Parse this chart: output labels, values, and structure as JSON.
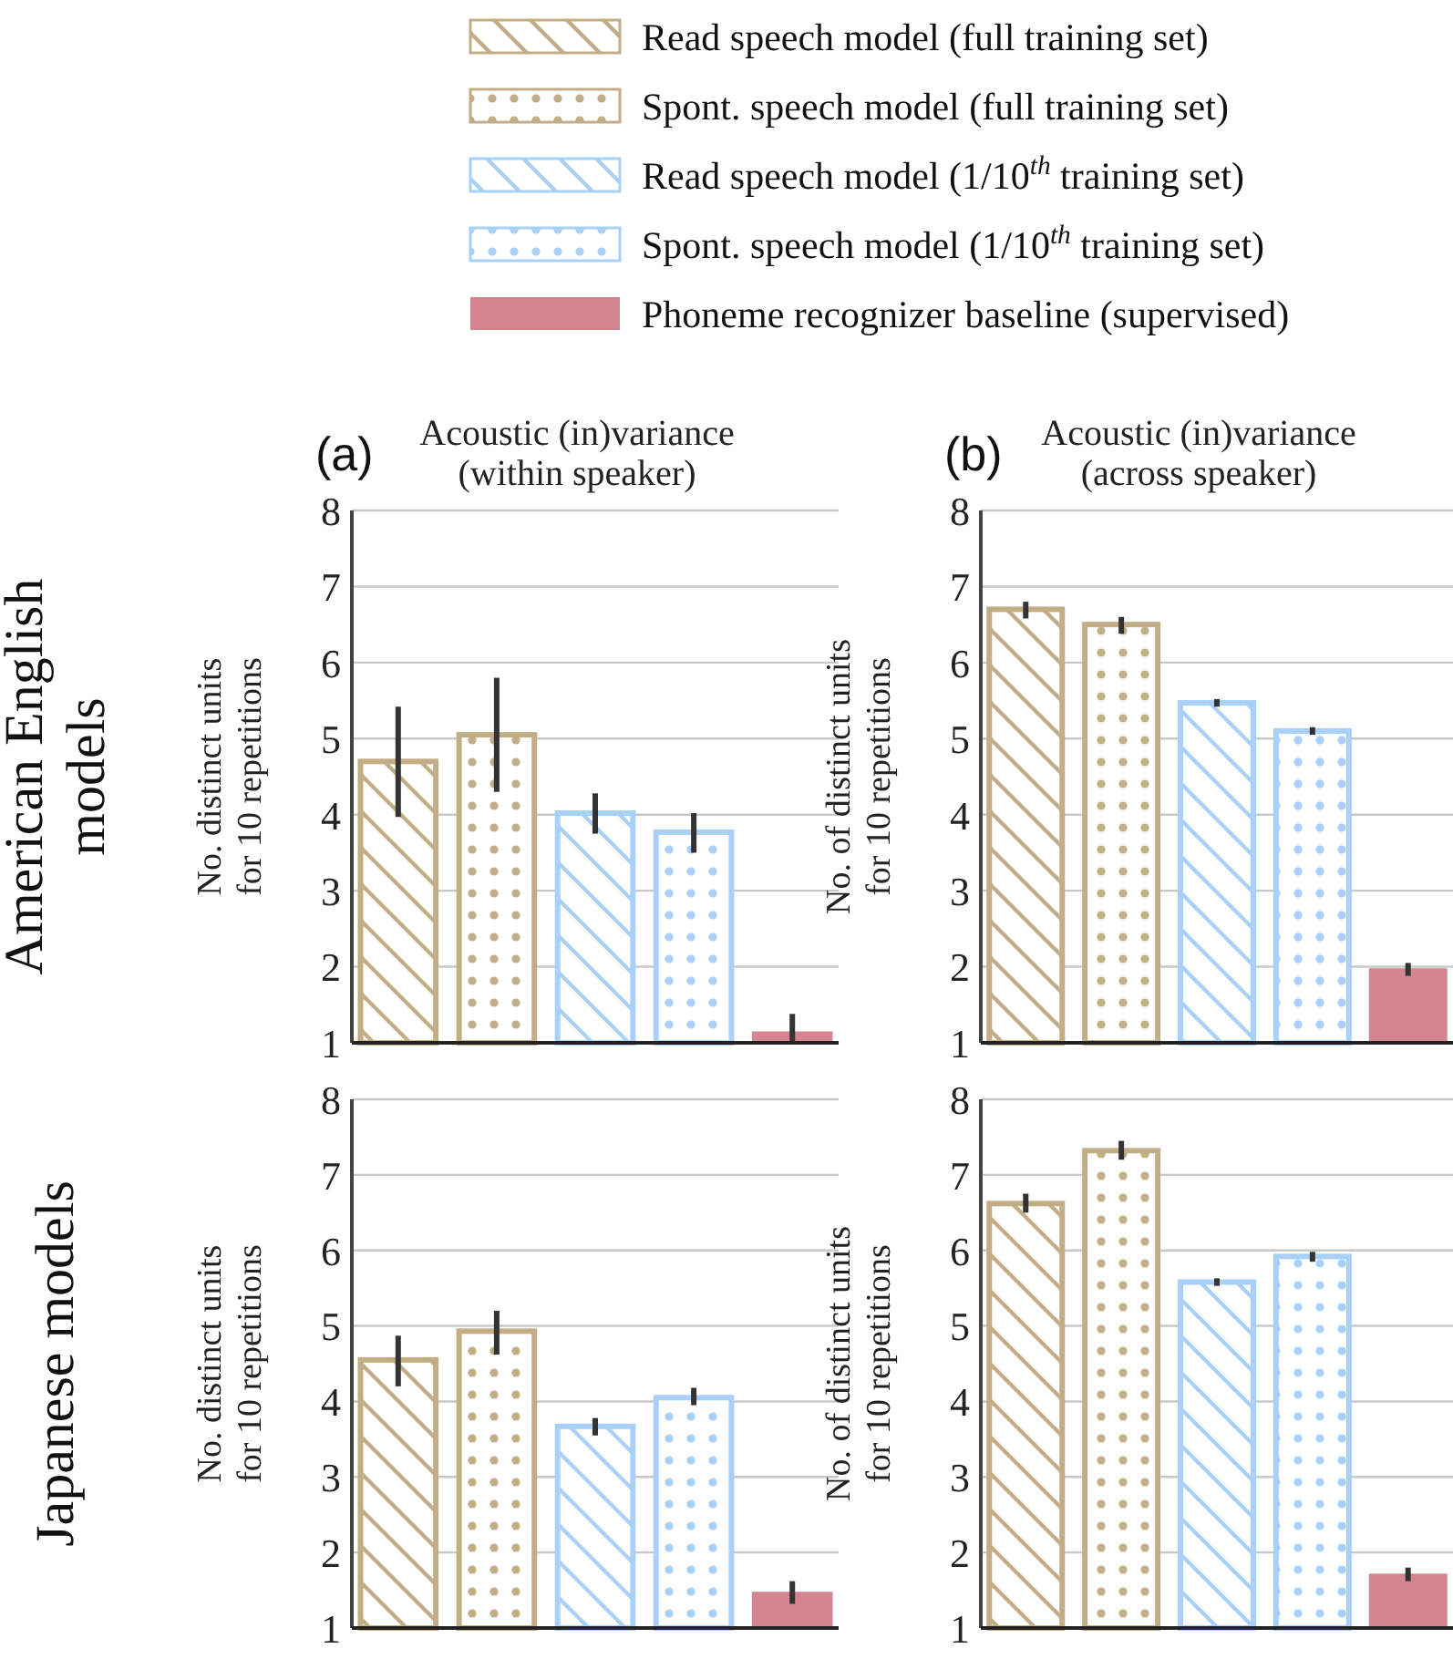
{
  "chart_data": [
    {
      "type": "bar",
      "title": "Acoustic (in)variance (within speaker)",
      "ylabel": "No. distinct units for 10 repetitions",
      "annotations": [
        "(a)",
        "American English models"
      ],
      "categories": [
        null,
        null,
        null,
        null,
        null
      ],
      "ylim": [
        1,
        8
      ],
      "yticks": [
        1,
        2,
        3,
        4,
        5,
        6,
        7,
        8
      ],
      "grid": "y",
      "legend": "top",
      "series": [
        {
          "name": "Read speech model (full training set)",
          "color": "#c3ad87",
          "values": [
            4.7,
            null,
            null,
            null,
            null
          ],
          "errors": [
            [
              3.97,
              5.42
            ],
            null,
            null,
            null,
            null
          ]
        },
        {
          "name": "Spont. speech model (full training set)",
          "color": "#c3ad87",
          "values": [
            null,
            5.05,
            null,
            null,
            null
          ],
          "errors": [
            null,
            [
              4.3,
              5.8
            ],
            null,
            null,
            null
          ]
        },
        {
          "name": "Read speech model (1/10$^{th}$ training set)",
          "color": "#a8d0f8",
          "values": [
            null,
            null,
            4.02,
            null,
            null
          ],
          "errors": [
            null,
            null,
            [
              3.75,
              4.28
            ],
            null,
            null
          ]
        },
        {
          "name": "Spont. speech model (1/10$^{th}$ training set)",
          "color": "#a8d0f8",
          "values": [
            null,
            null,
            null,
            3.77,
            null
          ],
          "errors": [
            null,
            null,
            null,
            [
              3.5,
              4.02
            ],
            null
          ]
        },
        {
          "name": "Phoneme recognizer baseline (supervised)",
          "color": "#d4858f",
          "values": [
            null,
            null,
            null,
            null,
            1.15
          ],
          "errors": [
            null,
            null,
            null,
            null,
            [
              1.0,
              1.38
            ]
          ]
        }
      ]
    },
    {
      "type": "bar",
      "title": "Acoustic (in)variance (across speaker)",
      "ylabel": "No. of distinct units for 10 repetitions",
      "annotations": [
        "(b)"
      ],
      "categories": [
        null,
        null,
        null,
        null,
        null
      ],
      "ylim": [
        1,
        8
      ],
      "yticks": [
        1,
        2,
        3,
        4,
        5,
        6,
        7,
        8
      ],
      "grid": "y",
      "series": [
        {
          "color": "#c3ad87",
          "values": [
            6.7,
            null,
            null,
            null,
            null
          ],
          "errors": [
            [
              6.58,
              6.8
            ],
            null,
            null,
            null,
            null
          ]
        },
        {
          "color": "#c3ad87",
          "values": [
            null,
            6.5,
            null,
            null,
            null
          ],
          "errors": [
            null,
            [
              6.38,
              6.6
            ],
            null,
            null,
            null
          ]
        },
        {
          "color": "#a8d0f8",
          "values": [
            null,
            null,
            5.47,
            null,
            null
          ],
          "errors": [
            null,
            null,
            [
              5.42,
              5.52
            ],
            null,
            null
          ]
        },
        {
          "color": "#a8d0f8",
          "values": [
            null,
            null,
            null,
            5.1,
            null
          ],
          "errors": [
            null,
            null,
            null,
            [
              5.05,
              5.15
            ],
            null
          ]
        },
        {
          "color": "#d4858f",
          "values": [
            null,
            null,
            null,
            null,
            1.98
          ],
          "errors": [
            null,
            null,
            null,
            null,
            [
              1.88,
              2.05
            ]
          ]
        }
      ]
    },
    {
      "type": "bar",
      "ylabel": "No. distinct units for 10 repetitions",
      "annotations": [
        "Japanese models"
      ],
      "categories": [
        null,
        null,
        null,
        null,
        null
      ],
      "ylim": [
        1,
        8
      ],
      "yticks": [
        1,
        2,
        3,
        4,
        5,
        6,
        7,
        8
      ],
      "grid": "y",
      "series": [
        {
          "color": "#c3ad87",
          "values": [
            4.55,
            null,
            null,
            null,
            null
          ],
          "errors": [
            [
              4.2,
              4.87
            ],
            null,
            null,
            null,
            null
          ]
        },
        {
          "color": "#c3ad87",
          "values": [
            null,
            4.93,
            null,
            null,
            null
          ],
          "errors": [
            null,
            [
              4.62,
              5.2
            ],
            null,
            null,
            null
          ]
        },
        {
          "color": "#a8d0f8",
          "values": [
            null,
            null,
            3.67,
            null,
            null
          ],
          "errors": [
            null,
            null,
            [
              3.55,
              3.78
            ],
            null,
            null
          ]
        },
        {
          "color": "#a8d0f8",
          "values": [
            null,
            null,
            null,
            4.05,
            null
          ],
          "errors": [
            null,
            null,
            null,
            [
              3.95,
              4.18
            ],
            null
          ]
        },
        {
          "color": "#d4858f",
          "values": [
            null,
            null,
            null,
            null,
            1.48
          ],
          "errors": [
            null,
            null,
            null,
            null,
            [
              1.32,
              1.62
            ]
          ]
        }
      ]
    },
    {
      "type": "bar",
      "ylabel": "No. of distinct units for 10 repetitions",
      "categories": [
        null,
        null,
        null,
        null,
        null
      ],
      "ylim": [
        1,
        8
      ],
      "yticks": [
        1,
        2,
        3,
        4,
        5,
        6,
        7,
        8
      ],
      "grid": "y",
      "series": [
        {
          "color": "#c3ad87",
          "values": [
            6.62,
            null,
            null,
            null,
            null
          ],
          "errors": [
            [
              6.5,
              6.75
            ],
            null,
            null,
            null,
            null
          ]
        },
        {
          "color": "#c3ad87",
          "values": [
            null,
            7.32,
            null,
            null,
            null
          ],
          "errors": [
            null,
            [
              7.2,
              7.45
            ],
            null,
            null,
            null
          ]
        },
        {
          "color": "#a8d0f8",
          "values": [
            null,
            null,
            5.58,
            null,
            null
          ],
          "errors": [
            null,
            null,
            [
              5.53,
              5.63
            ],
            null,
            null
          ]
        },
        {
          "color": "#a8d0f8",
          "values": [
            null,
            null,
            null,
            5.92,
            null
          ],
          "errors": [
            null,
            null,
            null,
            [
              5.85,
              5.98
            ],
            null
          ]
        },
        {
          "color": "#d4858f",
          "values": [
            null,
            null,
            null,
            null,
            1.72
          ],
          "errors": [
            null,
            null,
            null,
            null,
            [
              1.62,
              1.8
            ]
          ]
        }
      ]
    }
  ]
}
